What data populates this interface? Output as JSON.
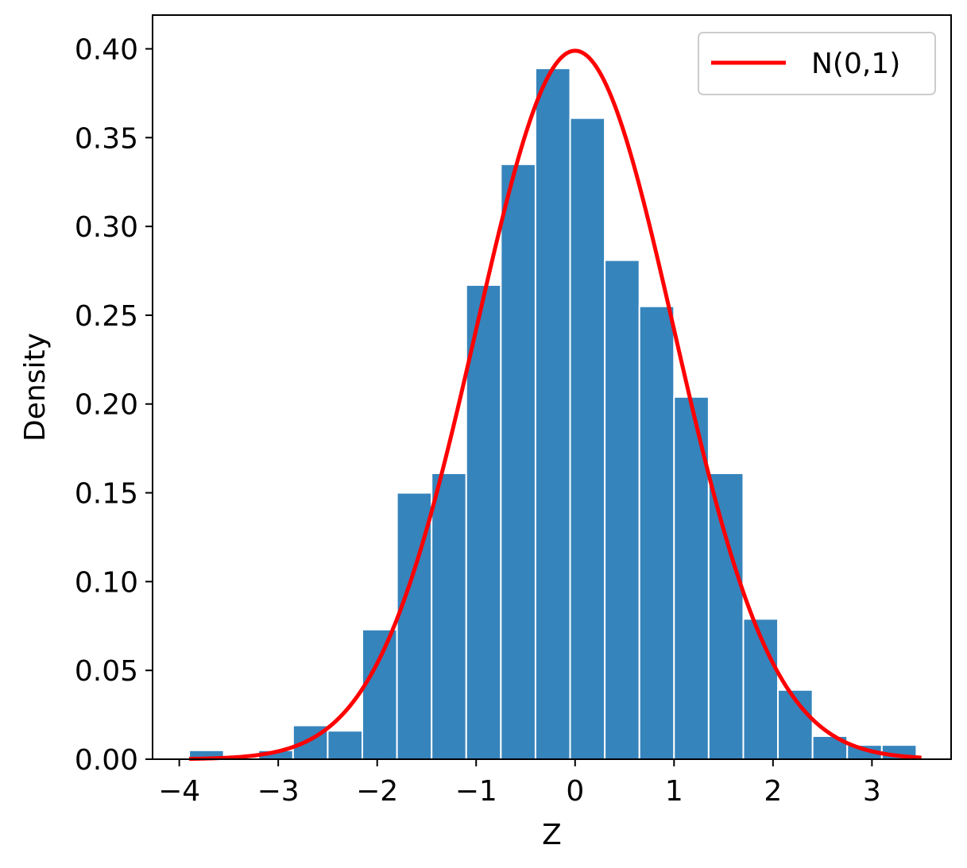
{
  "chart_data": {
    "type": "bar",
    "xlabel": "Z",
    "ylabel": "Density",
    "xlim": [
      -4.27,
      3.8
    ],
    "ylim": [
      0,
      0.419
    ],
    "x_ticks": [
      -4,
      -3,
      -2,
      -1,
      0,
      1,
      2,
      3
    ],
    "x_tick_labels": [
      "−4",
      "−3",
      "−2",
      "−1",
      "0",
      "1",
      "2",
      "3"
    ],
    "y_ticks": [
      0,
      0.05,
      0.1,
      0.15,
      0.2,
      0.25,
      0.3,
      0.35,
      0.4
    ],
    "y_tick_labels": [
      "0.00",
      "0.05",
      "0.10",
      "0.15",
      "0.20",
      "0.25",
      "0.30",
      "0.35",
      "0.40"
    ],
    "bin_width": 0.35,
    "bins": [
      {
        "left": -3.9,
        "value": 0.005
      },
      {
        "left": -3.55,
        "value": 0.0
      },
      {
        "left": -3.2,
        "value": 0.005
      },
      {
        "left": -2.85,
        "value": 0.019
      },
      {
        "left": -2.5,
        "value": 0.016
      },
      {
        "left": -2.15,
        "value": 0.073
      },
      {
        "left": -1.8,
        "value": 0.15
      },
      {
        "left": -1.45,
        "value": 0.161
      },
      {
        "left": -1.1,
        "value": 0.267
      },
      {
        "left": -0.75,
        "value": 0.335
      },
      {
        "left": -0.4,
        "value": 0.389
      },
      {
        "left": -0.05,
        "value": 0.361
      },
      {
        "left": 0.3,
        "value": 0.281
      },
      {
        "left": 0.65,
        "value": 0.255
      },
      {
        "left": 1.0,
        "value": 0.204
      },
      {
        "left": 1.35,
        "value": 0.161
      },
      {
        "left": 1.7,
        "value": 0.079
      },
      {
        "left": 2.05,
        "value": 0.039
      },
      {
        "left": 2.4,
        "value": 0.013
      },
      {
        "left": 2.75,
        "value": 0.008
      },
      {
        "left": 3.1,
        "value": 0.008
      }
    ],
    "curve": {
      "name": "N(0,1)",
      "x_range": [
        -3.9,
        3.5
      ],
      "mean": 0,
      "sd": 1
    },
    "legend_position": "top-right",
    "grid": false,
    "colors": {
      "bars": "#3684bc",
      "bar_edge": "#ffffff",
      "curve": "#ff0000",
      "axes": "#000000",
      "legend_border": "#cccccc"
    }
  }
}
